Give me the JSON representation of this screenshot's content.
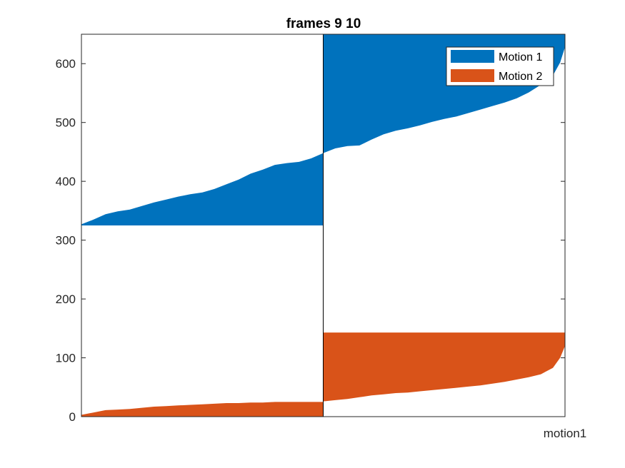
{
  "chart_data": {
    "type": "area",
    "title": "frames 9 10",
    "xlabel": "",
    "ylabel": "",
    "x_tick_labels": [
      "motion1"
    ],
    "ylim": [
      0,
      650
    ],
    "yticks": [
      0,
      100,
      200,
      300,
      400,
      500,
      600
    ],
    "grid": false,
    "legend_position": "top-right",
    "columns": [
      {
        "series": "Motion 1",
        "base": 325,
        "top_profile": [
          [
            0,
            327
          ],
          [
            0.05,
            335
          ],
          [
            0.1,
            344
          ],
          [
            0.15,
            349
          ],
          [
            0.2,
            352
          ],
          [
            0.25,
            358
          ],
          [
            0.3,
            364
          ],
          [
            0.35,
            369
          ],
          [
            0.4,
            374
          ],
          [
            0.45,
            378
          ],
          [
            0.5,
            381
          ],
          [
            0.55,
            387
          ],
          [
            0.6,
            395
          ],
          [
            0.65,
            403
          ],
          [
            0.7,
            413
          ],
          [
            0.75,
            420
          ],
          [
            0.8,
            428
          ],
          [
            0.85,
            431
          ],
          [
            0.9,
            433
          ],
          [
            0.95,
            439
          ],
          [
            1.0,
            448
          ]
        ]
      },
      {
        "series": "Motion 1",
        "base": 650,
        "top_profile": [
          [
            0,
            448
          ],
          [
            0.05,
            456
          ],
          [
            0.1,
            460
          ],
          [
            0.15,
            461
          ],
          [
            0.2,
            471
          ],
          [
            0.25,
            480
          ],
          [
            0.3,
            486
          ],
          [
            0.35,
            490
          ],
          [
            0.4,
            495
          ],
          [
            0.45,
            501
          ],
          [
            0.5,
            506
          ],
          [
            0.55,
            510
          ],
          [
            0.6,
            516
          ],
          [
            0.65,
            522
          ],
          [
            0.7,
            528
          ],
          [
            0.75,
            534
          ],
          [
            0.8,
            541
          ],
          [
            0.85,
            551
          ],
          [
            0.9,
            564
          ],
          [
            0.95,
            580
          ],
          [
            0.98,
            602
          ],
          [
            1.0,
            628
          ]
        ]
      },
      {
        "series": "Motion 2",
        "base": 0,
        "top_profile": [
          [
            0,
            3
          ],
          [
            0.05,
            7
          ],
          [
            0.1,
            11
          ],
          [
            0.15,
            12
          ],
          [
            0.2,
            13
          ],
          [
            0.25,
            15
          ],
          [
            0.3,
            17
          ],
          [
            0.35,
            18
          ],
          [
            0.4,
            19
          ],
          [
            0.45,
            20
          ],
          [
            0.5,
            21
          ],
          [
            0.55,
            22
          ],
          [
            0.6,
            23
          ],
          [
            0.65,
            23
          ],
          [
            0.7,
            24
          ],
          [
            0.75,
            24
          ],
          [
            0.8,
            25
          ],
          [
            0.85,
            25
          ],
          [
            0.9,
            25
          ],
          [
            0.95,
            25
          ],
          [
            1.0,
            25
          ]
        ]
      },
      {
        "series": "Motion 2",
        "base": 143,
        "top_profile": [
          [
            0,
            26
          ],
          [
            0.05,
            28
          ],
          [
            0.1,
            30
          ],
          [
            0.15,
            33
          ],
          [
            0.2,
            36
          ],
          [
            0.25,
            38
          ],
          [
            0.3,
            40
          ],
          [
            0.35,
            41
          ],
          [
            0.4,
            43
          ],
          [
            0.45,
            45
          ],
          [
            0.5,
            47
          ],
          [
            0.55,
            49
          ],
          [
            0.6,
            51
          ],
          [
            0.65,
            53
          ],
          [
            0.7,
            56
          ],
          [
            0.75,
            59
          ],
          [
            0.8,
            63
          ],
          [
            0.85,
            67
          ],
          [
            0.9,
            72
          ],
          [
            0.95,
            83
          ],
          [
            0.98,
            100
          ],
          [
            1.0,
            120
          ]
        ]
      }
    ],
    "series": [
      {
        "name": "Motion 1",
        "color": "#0072BD"
      },
      {
        "name": "Motion 2",
        "color": "#D95319"
      }
    ]
  }
}
